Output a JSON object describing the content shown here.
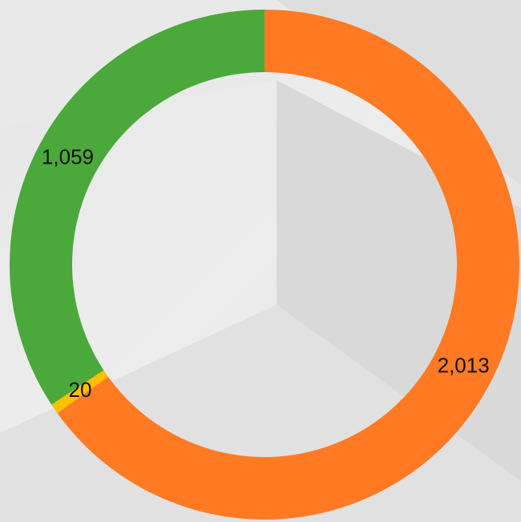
{
  "chart_data": {
    "type": "donut",
    "categories": [
      null,
      null,
      null
    ],
    "values": [
      2013,
      20,
      1059
    ],
    "value_labels": [
      "2,013",
      "20",
      "1,059"
    ],
    "colors": [
      "#ff7a22",
      "#ffc000",
      "#4aa93a"
    ]
  }
}
